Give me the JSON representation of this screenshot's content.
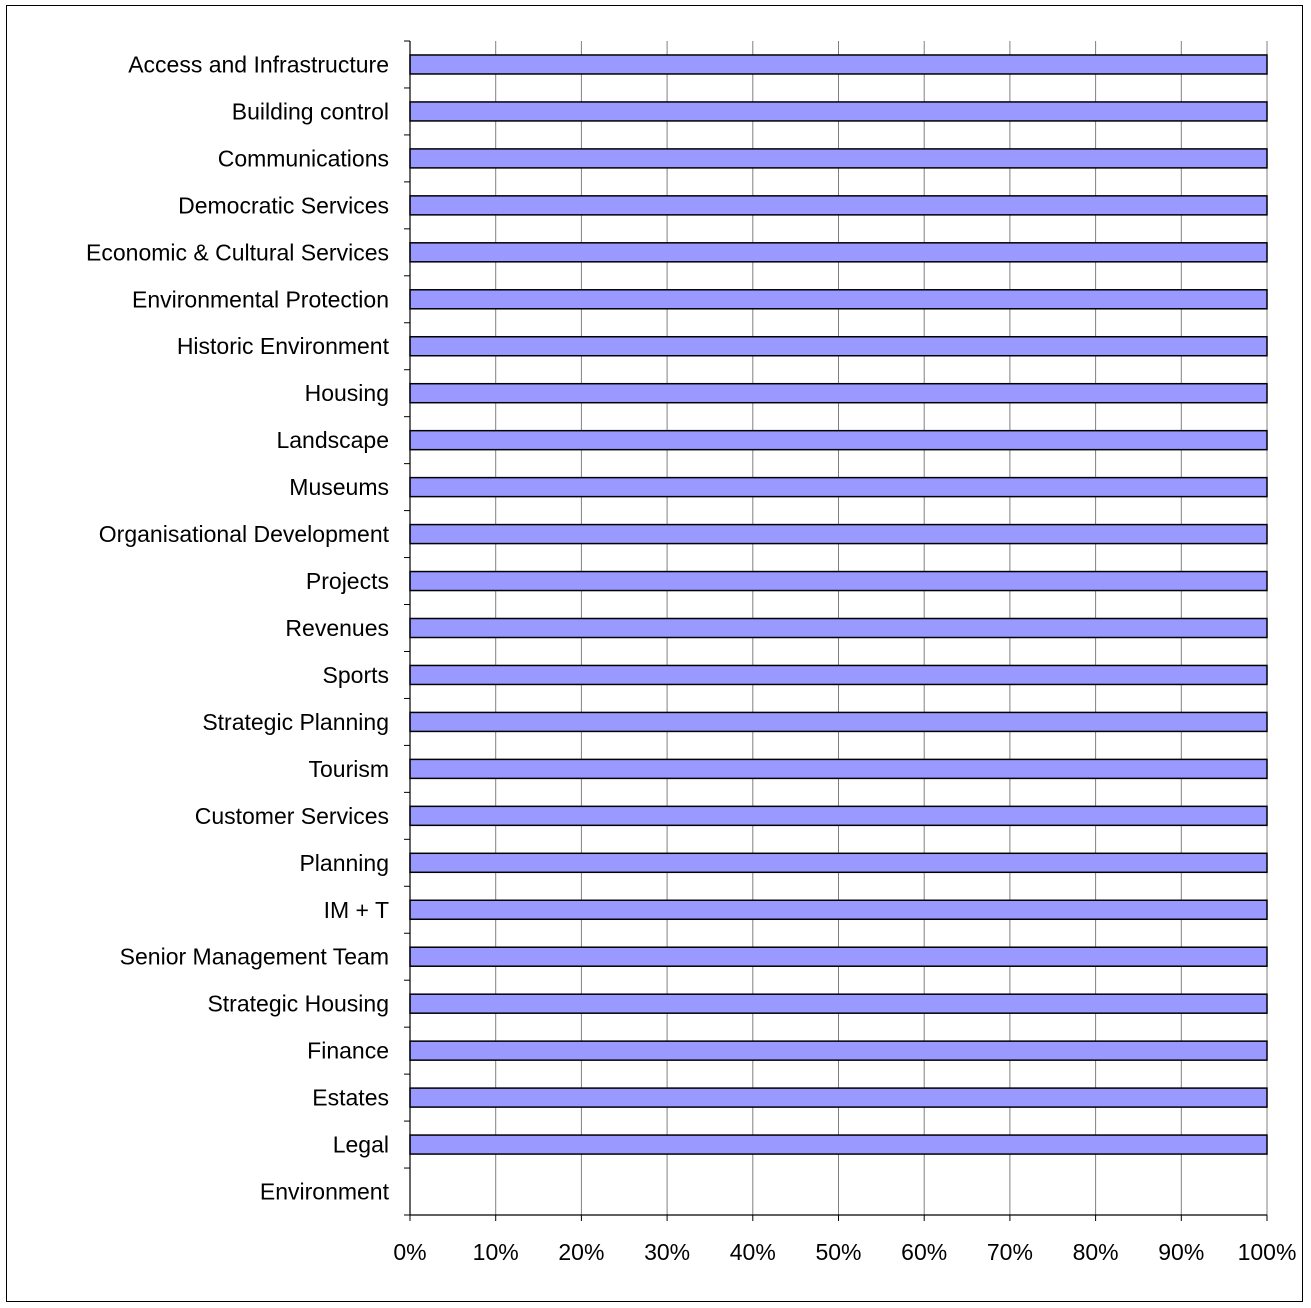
{
  "chart_data": {
    "type": "bar",
    "orientation": "horizontal",
    "stacked": "percent",
    "categories": [
      "Access and Infrastructure",
      "Building control",
      "Communications",
      "Democratic Services",
      "Economic & Cultural Services",
      "Environmental Protection",
      "Historic Environment",
      "Housing",
      "Landscape",
      "Museums",
      "Organisational Development",
      "Projects",
      "Revenues",
      "Sports",
      "Strategic Planning",
      "Tourism",
      "Customer Services",
      "Planning",
      "IM + T",
      "Senior Management Team",
      "Strategic Housing",
      "Finance",
      "Estates",
      "Legal",
      "Environment"
    ],
    "values": [
      100,
      100,
      100,
      100,
      100,
      100,
      100,
      100,
      100,
      100,
      100,
      100,
      100,
      100,
      100,
      100,
      100,
      100,
      100,
      100,
      100,
      100,
      100,
      100,
      0
    ],
    "xlim": [
      0,
      100
    ],
    "xticks": [
      "0%",
      "10%",
      "20%",
      "30%",
      "40%",
      "50%",
      "60%",
      "70%",
      "80%",
      "90%",
      "100%"
    ],
    "title": "",
    "xlabel": "",
    "ylabel": "",
    "grid": "vertical",
    "legend": "none",
    "bar_color": "#9999ff",
    "bar_edge_color": "#000000"
  }
}
